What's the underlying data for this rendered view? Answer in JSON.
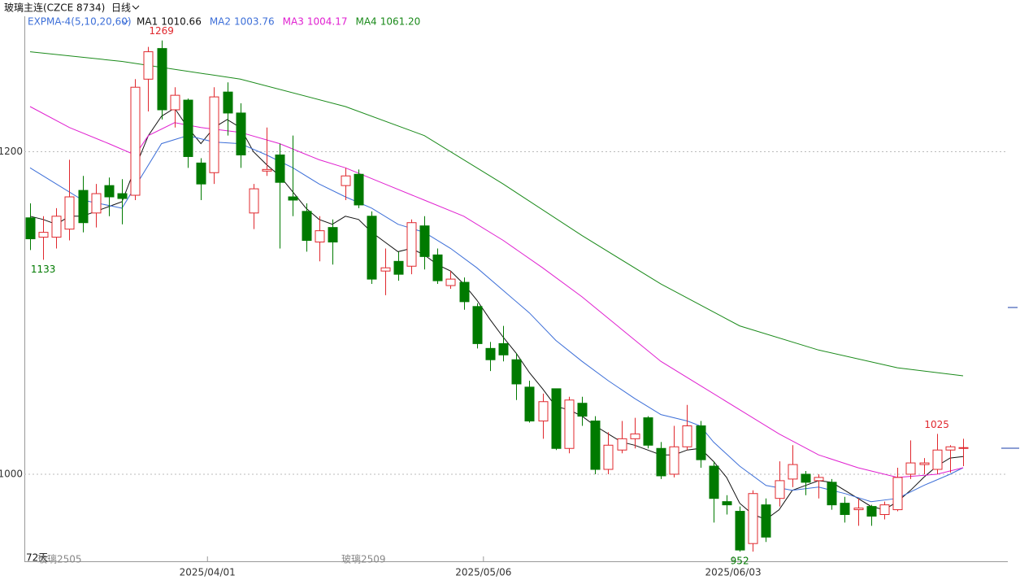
{
  "header": {
    "title": "玻璃主连(CZCE 8734)",
    "period": "日线"
  },
  "chart_data": {
    "type": "candlestick",
    "indicator": "EXPMA-4(5,10,20,60)",
    "up_color": "#e0282e",
    "down_color": "#007a00",
    "xlim": [
      -0.43,
      74.4
    ],
    "ylim": [
      946,
      1284
    ],
    "yticks": [
      1000,
      1200
    ],
    "grid": true,
    "open": [
      1159,
      1147,
      1147,
      1152,
      1176,
      1162,
      1179,
      1174,
      1173,
      1245,
      1264,
      1226,
      1232,
      1193,
      1187,
      1237,
      1224,
      1162,
      1188,
      1198,
      1172,
      1163,
      1144,
      1153,
      1179,
      1186,
      1160,
      1126,
      1132,
      1129,
      1154,
      1136,
      1117,
      1119,
      1104,
      1078,
      1081,
      1071,
      1054,
      1033,
      1053,
      1016,
      1044,
      1033,
      1003,
      1015,
      1022,
      1035,
      1016,
      1000,
      1017,
      1030,
      1005,
      983,
      977,
      957,
      981,
      985,
      997,
      1000,
      996,
      995,
      982,
      978,
      980,
      975,
      978,
      1000,
      1006,
      1003,
      1015,
      1016
    ],
    "high": [
      1168,
      1160,
      1165,
      1195,
      1185,
      1180,
      1184,
      1183,
      1245,
      1265,
      1269,
      1240,
      1233,
      1196,
      1240,
      1243,
      1230,
      1180,
      1215,
      1205,
      1210,
      1168,
      1160,
      1158,
      1190,
      1189,
      1163,
      1140,
      1138,
      1158,
      1160,
      1140,
      1126,
      1122,
      1106,
      1082,
      1092,
      1075,
      1058,
      1050,
      1053,
      1048,
      1048,
      1036,
      1026,
      1033,
      1035,
      1036,
      1020,
      1030,
      1043,
      1033,
      1008,
      987,
      980,
      990,
      985,
      1008,
      1018,
      1002,
      1000,
      997,
      986,
      985,
      981,
      983,
      1004,
      1021,
      1010,
      1025,
      1018,
      1022
    ],
    "low": [
      1139,
      1133,
      1140,
      1145,
      1150,
      1153,
      1160,
      1155,
      1170,
      1225,
      1220,
      1215,
      1190,
      1170,
      1180,
      1210,
      1190,
      1152,
      1185,
      1140,
      1160,
      1138,
      1132,
      1130,
      1170,
      1165,
      1118,
      1111,
      1120,
      1124,
      1127,
      1118,
      1115,
      1102,
      1078,
      1064,
      1070,
      1046,
      1032,
      1022,
      1015,
      1013,
      1030,
      1000,
      1000,
      1013,
      1016,
      1016,
      997,
      998,
      1015,
      1004,
      970,
      975,
      952,
      952,
      958,
      980,
      992,
      987,
      985,
      978,
      970,
      968,
      968,
      972,
      977,
      997,
      1000,
      1000,
      1001,
      1005
    ],
    "close": [
      1146,
      1150,
      1160,
      1172,
      1156,
      1174,
      1172,
      1171,
      1240,
      1262,
      1226,
      1235,
      1197,
      1180,
      1234,
      1224,
      1198,
      1177,
      1189,
      1181,
      1170,
      1145,
      1151,
      1144,
      1185,
      1167,
      1121,
      1128,
      1124,
      1156,
      1135,
      1120,
      1121,
      1107,
      1081,
      1071,
      1074,
      1056,
      1033,
      1045,
      1016,
      1046,
      1036,
      1003,
      1018,
      1022,
      1025,
      1018,
      999,
      1017,
      1030,
      1009,
      985,
      981,
      953,
      988,
      961,
      996,
      1006,
      995,
      998,
      981,
      975,
      979,
      974,
      981,
      998,
      1007,
      1007,
      1015,
      1017,
      1016.5
    ],
    "series": [
      {
        "name": "MA1",
        "latest": 1010.66,
        "color": "#111111",
        "x": [
          0,
          1,
          2,
          3,
          4,
          5,
          6,
          7,
          8,
          9,
          10,
          11,
          12,
          13,
          14,
          15,
          16,
          17,
          18,
          19,
          20,
          21,
          22,
          23,
          24,
          25,
          26,
          27,
          28,
          29,
          30,
          31,
          32,
          33,
          34,
          35,
          36,
          37,
          38,
          39,
          40,
          41,
          42,
          43,
          44,
          45,
          46,
          47,
          48,
          49,
          50,
          51,
          52,
          53,
          54,
          55,
          56,
          57,
          58,
          59,
          60,
          61,
          62,
          63,
          64,
          65,
          66,
          67,
          68,
          69,
          70,
          71
        ],
        "values": [
          1160,
          1158,
          1155,
          1160,
          1160,
          1163,
          1166,
          1169,
          1190,
          1210,
          1222,
          1227,
          1215,
          1205,
          1215,
          1220,
          1215,
          1200,
          1192,
          1185,
          1175,
          1165,
          1158,
          1155,
          1160,
          1158,
          1150,
          1144,
          1138,
          1140,
          1136,
          1130,
          1126,
          1118,
          1108,
          1096,
          1085,
          1075,
          1063,
          1053,
          1042,
          1040,
          1036,
          1030,
          1025,
          1020,
          1018,
          1015,
          1012,
          1012,
          1015,
          1016,
          1008,
          998,
          982,
          975,
          972,
          978,
          990,
          993,
          996,
          995,
          990,
          985,
          980,
          978,
          983,
          990,
          998,
          1005,
          1010,
          1011
        ]
      },
      {
        "name": "MA2",
        "latest": 1003.76,
        "color": "#3d6fd8",
        "x": [
          0,
          2,
          4,
          7,
          10,
          12,
          14,
          16,
          18,
          20,
          22,
          24,
          26,
          28,
          30,
          32,
          34,
          36,
          38,
          40,
          42,
          44,
          46,
          48,
          50,
          51,
          52,
          54,
          56,
          58,
          60,
          62,
          64,
          66,
          68,
          70,
          71
        ],
        "values": [
          1190,
          1180,
          1170,
          1165,
          1205,
          1210,
          1206,
          1205,
          1198,
          1190,
          1180,
          1172,
          1165,
          1155,
          1150,
          1140,
          1128,
          1114,
          1100,
          1083,
          1070,
          1058,
          1047,
          1037,
          1033,
          1030,
          1020,
          1005,
          993,
          990,
          992,
          988,
          983,
          985,
          993,
          1000,
          1004
        ]
      },
      {
        "name": "MA3",
        "latest": 1004.17,
        "color": "#e020d0",
        "x": [
          0,
          3,
          6,
          8,
          9,
          11,
          13,
          16,
          19,
          22,
          24,
          27,
          30,
          33,
          36,
          39,
          42,
          45,
          48,
          51,
          54,
          57,
          60,
          63,
          66,
          69,
          71
        ],
        "values": [
          1228,
          1215,
          1205,
          1198,
          1210,
          1218,
          1215,
          1212,
          1205,
          1195,
          1190,
          1180,
          1170,
          1160,
          1145,
          1128,
          1110,
          1090,
          1070,
          1055,
          1040,
          1025,
          1012,
          1004,
          998,
          1000,
          1004
        ]
      },
      {
        "name": "MA4",
        "latest": {
          "value": 1061.2,
          "label": "1061.20"
        },
        "color": "#1a8a1a",
        "x": [
          0,
          7,
          16,
          24,
          30,
          36,
          42,
          48,
          54,
          60,
          66,
          71
        ],
        "values": [
          1262,
          1256,
          1245,
          1228,
          1210,
          1180,
          1148,
          1118,
          1092,
          1077,
          1066,
          1061
        ]
      }
    ],
    "annotations": [
      {
        "x": 10,
        "value": 1269,
        "position": "above"
      },
      {
        "x": 1,
        "value": 1133,
        "position": "below"
      },
      {
        "x": 54,
        "value": 952,
        "position": "below"
      },
      {
        "x": 69,
        "value": 1025,
        "position": "above"
      }
    ],
    "xticks": [
      {
        "value": 13.5,
        "label": "2025/04/01"
      },
      {
        "value": 34.5,
        "label": "2025/05/06"
      },
      {
        "value": 53.5,
        "label": "2025/06/03"
      }
    ],
    "footer": {
      "count": "72天",
      "contract_a": "玻璃2505",
      "contract_b": "玻璃2509"
    }
  }
}
